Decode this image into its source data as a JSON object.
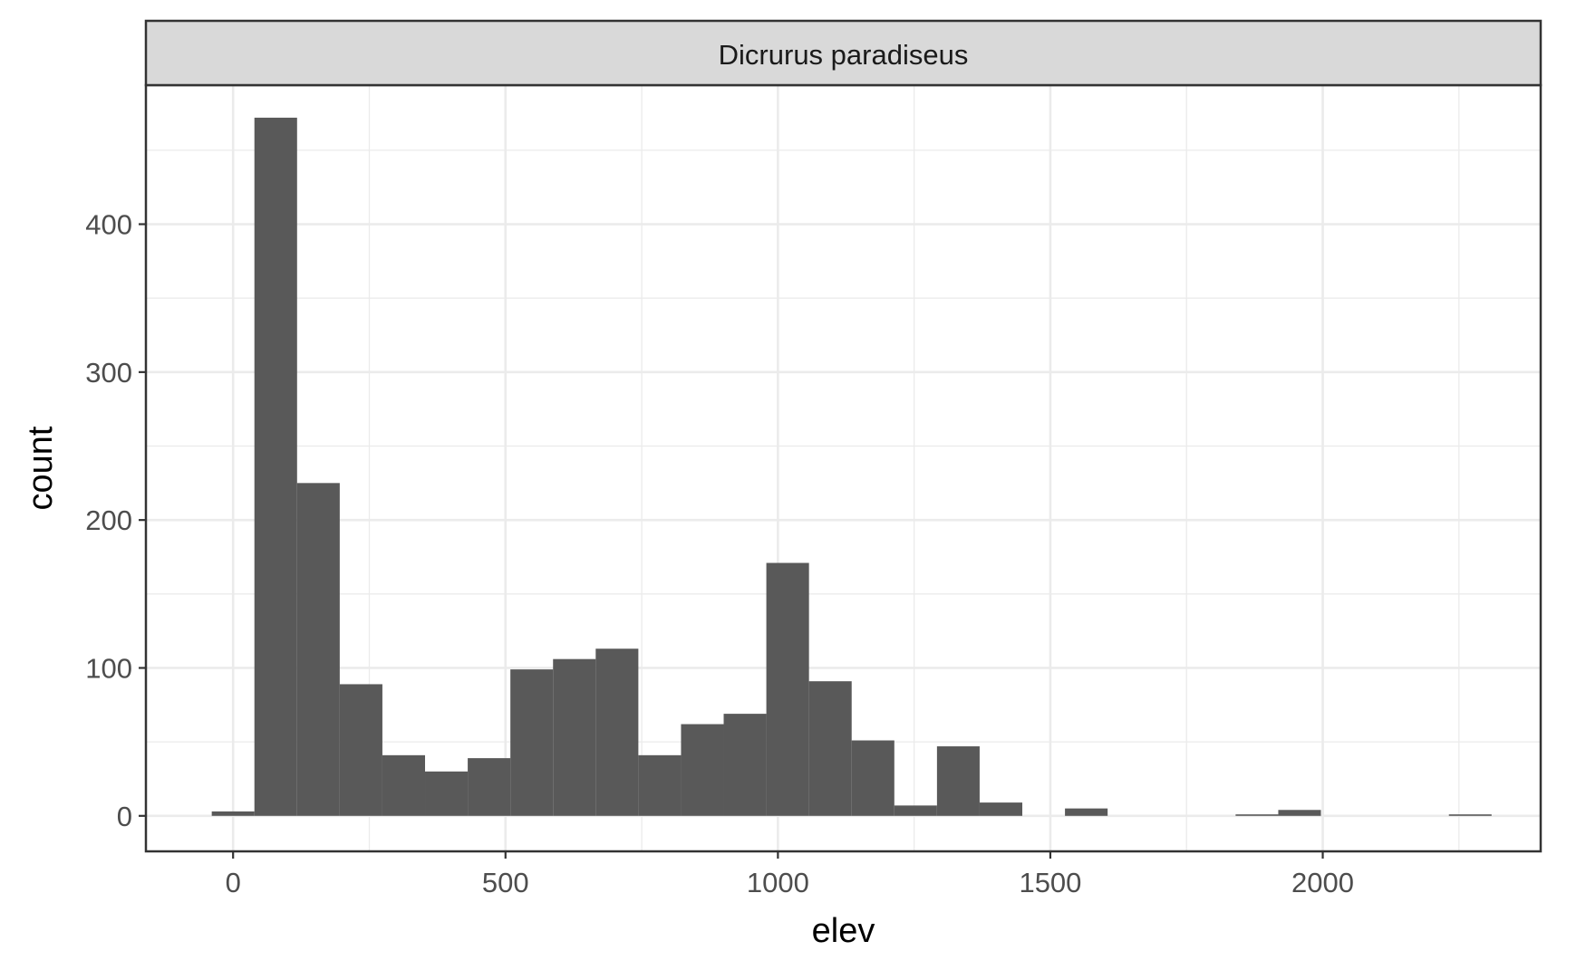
{
  "chart_data": {
    "type": "bar",
    "facet_label": "Dicrurus paradiseus",
    "xlabel": "elev",
    "ylabel": "count",
    "xlim": [
      -160,
      2400
    ],
    "ylim": [
      -24,
      494
    ],
    "x_ticks": [
      0,
      500,
      1000,
      1500,
      2000
    ],
    "y_ticks": [
      0,
      100,
      200,
      300,
      400
    ],
    "bin_width": 78.3,
    "bins": [
      {
        "x": 0,
        "count": 3
      },
      {
        "x": 78.3,
        "count": 472
      },
      {
        "x": 156.6,
        "count": 225
      },
      {
        "x": 234.9,
        "count": 89
      },
      {
        "x": 313.2,
        "count": 41
      },
      {
        "x": 391.5,
        "count": 30
      },
      {
        "x": 469.8,
        "count": 39
      },
      {
        "x": 548.1,
        "count": 99
      },
      {
        "x": 626.4,
        "count": 106
      },
      {
        "x": 704.7,
        "count": 113
      },
      {
        "x": 783.0,
        "count": 41
      },
      {
        "x": 861.3,
        "count": 62
      },
      {
        "x": 939.6,
        "count": 69
      },
      {
        "x": 1017.9,
        "count": 171
      },
      {
        "x": 1096.2,
        "count": 91
      },
      {
        "x": 1174.5,
        "count": 51
      },
      {
        "x": 1252.8,
        "count": 7
      },
      {
        "x": 1331.1,
        "count": 47
      },
      {
        "x": 1409.4,
        "count": 9
      },
      {
        "x": 1487.7,
        "count": 0
      },
      {
        "x": 1566.0,
        "count": 5
      },
      {
        "x": 1644.3,
        "count": 0
      },
      {
        "x": 1722.6,
        "count": 0
      },
      {
        "x": 1800.9,
        "count": 0
      },
      {
        "x": 1879.2,
        "count": 1
      },
      {
        "x": 1957.5,
        "count": 4
      },
      {
        "x": 2035.8,
        "count": 0
      },
      {
        "x": 2114.1,
        "count": 0
      },
      {
        "x": 2192.4,
        "count": 0
      },
      {
        "x": 2270.7,
        "count": 1
      }
    ],
    "grid": true,
    "theme": "bw",
    "bar_color": "#595959",
    "grid_color": "#ebebeb",
    "strip_fill": "#d9d9d9",
    "border_color": "#333333"
  }
}
